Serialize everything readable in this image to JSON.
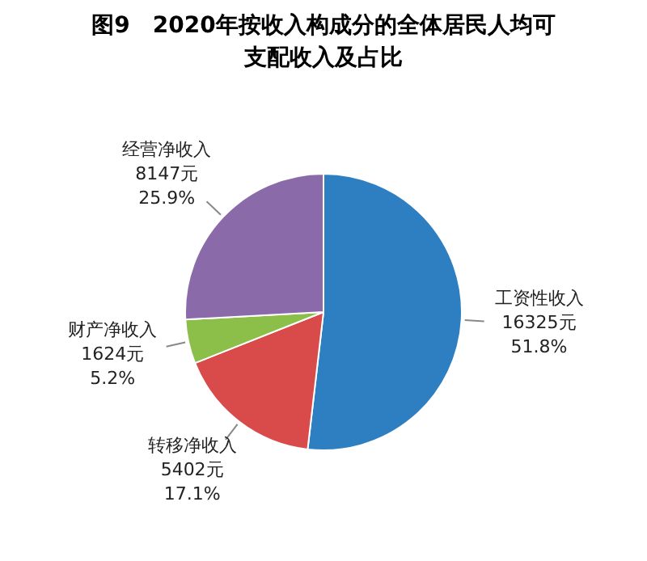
{
  "chart_data": {
    "type": "pie",
    "title": "图9　2020年按收入构成分的全体居民人均可支配收入及占比",
    "categories": [
      "工资性收入",
      "转移净收入",
      "财产净收入",
      "经营净收入"
    ],
    "values": [
      16325,
      5402,
      1624,
      8147
    ],
    "colors": [
      "#2e7fc1",
      "#d94a4a",
      "#8cbf4a",
      "#8a6aa8"
    ],
    "value_labels": [
      "16325元\n51.8%",
      "5402元\n17.1%",
      "1624元\n5.2%",
      "8147元\n25.9%"
    ],
    "legend": false
  }
}
